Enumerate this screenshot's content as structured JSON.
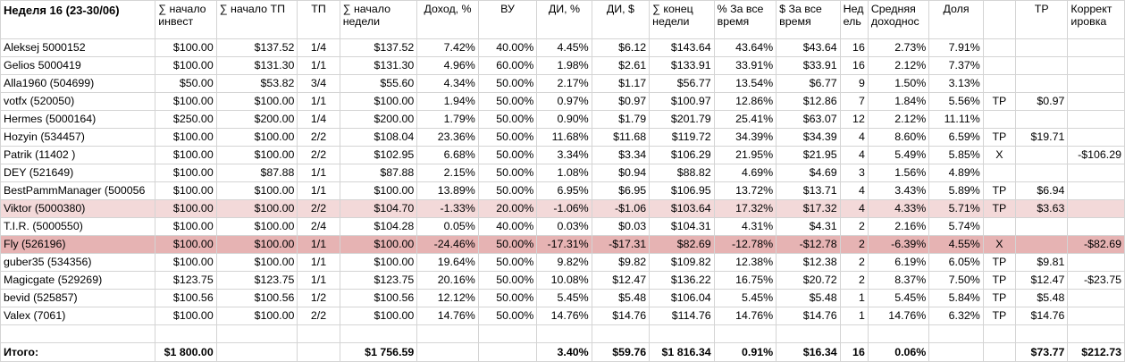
{
  "header": {
    "title": "Неделя 16 (23-30/06)",
    "columns": [
      "∑ начало инвест",
      "∑ начало ТП",
      "ТП",
      "∑ начало недели",
      "Доход, %",
      "ВУ",
      "ДИ, %",
      "ДИ, $",
      "∑ конец недели",
      "% За все время",
      "$ За все время",
      "Неделя",
      "Средняя доходность",
      "Доля",
      "",
      "ТР",
      "Корректировка"
    ],
    "columns_display": [
      "∑ начало\nинвест",
      "∑ начало ТП",
      "ТП",
      "∑ начало\nнедели",
      "Доход, %",
      "ВУ",
      "ДИ, %",
      "ДИ, $",
      "∑ конец\nнедели",
      "% За все\nвремя",
      "$ За все\nвремя",
      "Нед\nель",
      "Средняя\nдоходнос",
      "Доля",
      "",
      "ТР",
      "Коррект\nировка"
    ]
  },
  "rows": [
    {
      "name": "Aleksej 5000152",
      "cells": [
        "$100.00",
        "$137.52",
        "1/4",
        "$137.52",
        "7.42%",
        "40.00%",
        "4.45%",
        "$6.12",
        "$143.64",
        "43.64%",
        "$43.64",
        "16",
        "2.73%",
        "7.91%",
        "",
        "",
        ""
      ],
      "style": ""
    },
    {
      "name": "Gelios 5000419",
      "cells": [
        "$100.00",
        "$131.30",
        "1/1",
        "$131.30",
        "4.96%",
        "60.00%",
        "1.98%",
        "$2.61",
        "$133.91",
        "33.91%",
        "$33.91",
        "16",
        "2.12%",
        "7.37%",
        "",
        "",
        ""
      ],
      "style": ""
    },
    {
      "name": "Alla1960  (504699)",
      "cells": [
        "$50.00",
        "$53.82",
        "3/4",
        "$55.60",
        "4.34%",
        "50.00%",
        "2.17%",
        "$1.17",
        "$56.77",
        "13.54%",
        "$6.77",
        "9",
        "1.50%",
        "3.13%",
        "",
        "",
        ""
      ],
      "style": ""
    },
    {
      "name": "votfx (520050)",
      "cells": [
        "$100.00",
        "$100.00",
        "1/1",
        "$100.00",
        "1.94%",
        "50.00%",
        "0.97%",
        "$0.97",
        "$100.97",
        "12.86%",
        "$12.86",
        "7",
        "1.84%",
        "5.56%",
        "TP",
        "$0.97",
        ""
      ],
      "style": ""
    },
    {
      "name": "Hermes (5000164)",
      "cells": [
        "$250.00",
        "$200.00",
        "1/4",
        "$200.00",
        "1.79%",
        "50.00%",
        "0.90%",
        "$1.79",
        "$201.79",
        "25.41%",
        "$63.07",
        "12",
        "2.12%",
        "11.11%",
        "",
        "",
        ""
      ],
      "style": ""
    },
    {
      "name": "Hozyin (534457)",
      "cells": [
        "$100.00",
        "$100.00",
        "2/2",
        "$108.04",
        "23.36%",
        "50.00%",
        "11.68%",
        "$11.68",
        "$119.72",
        "34.39%",
        "$34.39",
        "4",
        "8.60%",
        "6.59%",
        "TP",
        "$19.71",
        ""
      ],
      "style": ""
    },
    {
      "name": "Patrik (11402 )",
      "cells": [
        "$100.00",
        "$100.00",
        "2/2",
        "$102.95",
        "6.68%",
        "50.00%",
        "3.34%",
        "$3.34",
        "$106.29",
        "21.95%",
        "$21.95",
        "4",
        "5.49%",
        "5.85%",
        "X",
        "",
        "-$106.29"
      ],
      "style": ""
    },
    {
      "name": "DEY (521649)",
      "cells": [
        "$100.00",
        "$87.88",
        "1/1",
        "$87.88",
        "2.15%",
        "50.00%",
        "1.08%",
        "$0.94",
        "$88.82",
        "4.69%",
        "$4.69",
        "3",
        "1.56%",
        "4.89%",
        "",
        "",
        ""
      ],
      "style": ""
    },
    {
      "name": "BestPammManager (500056",
      "cells": [
        "$100.00",
        "$100.00",
        "1/1",
        "$100.00",
        "13.89%",
        "50.00%",
        "6.95%",
        "$6.95",
        "$106.95",
        "13.72%",
        "$13.71",
        "4",
        "3.43%",
        "5.89%",
        "TP",
        "$6.94",
        ""
      ],
      "style": ""
    },
    {
      "name": "Viktor (5000380)",
      "cells": [
        "$100.00",
        "$100.00",
        "2/2",
        "$104.70",
        "-1.33%",
        "20.00%",
        "-1.06%",
        "-$1.06",
        "$103.64",
        "17.32%",
        "$17.32",
        "4",
        "4.33%",
        "5.71%",
        "TP",
        "$3.63",
        ""
      ],
      "style": "pink"
    },
    {
      "name": "T.I.R. (5000550)",
      "cells": [
        "$100.00",
        "$100.00",
        "2/4",
        "$104.28",
        "0.05%",
        "40.00%",
        "0.03%",
        "$0.03",
        "$104.31",
        "4.31%",
        "$4.31",
        "2",
        "2.16%",
        "5.74%",
        "",
        "",
        ""
      ],
      "style": ""
    },
    {
      "name": "Fly (526196)",
      "cells": [
        "$100.00",
        "$100.00",
        "1/1",
        "$100.00",
        "-24.46%",
        "50.00%",
        "-17.31%",
        "-$17.31",
        "$82.69",
        "-12.78%",
        "-$12.78",
        "2",
        "-6.39%",
        "4.55%",
        "X",
        "",
        "-$82.69"
      ],
      "style": "red"
    },
    {
      "name": "guber35 (534356)",
      "cells": [
        "$100.00",
        "$100.00",
        "1/1",
        "$100.00",
        "19.64%",
        "50.00%",
        "9.82%",
        "$9.82",
        "$109.82",
        "12.38%",
        "$12.38",
        "2",
        "6.19%",
        "6.05%",
        "TP",
        "$9.81",
        ""
      ],
      "style": ""
    },
    {
      "name": "Magicgate (529269)",
      "cells": [
        "$123.75",
        "$123.75",
        "1/1",
        "$123.75",
        "20.16%",
        "50.00%",
        "10.08%",
        "$12.47",
        "$136.22",
        "16.75%",
        "$20.72",
        "2",
        "8.37%",
        "7.50%",
        "TP",
        "$12.47",
        "-$23.75"
      ],
      "style": ""
    },
    {
      "name": "bevid (525857)",
      "cells": [
        "$100.56",
        "$100.56",
        "1/2",
        "$100.56",
        "12.12%",
        "50.00%",
        "5.45%",
        "$5.48",
        "$106.04",
        "5.45%",
        "$5.48",
        "1",
        "5.45%",
        "5.84%",
        "TP",
        "$5.48",
        ""
      ],
      "style": ""
    },
    {
      "name": "Valex (7061)",
      "cells": [
        "$100.00",
        "$100.00",
        "2/2",
        "$100.00",
        "14.76%",
        "50.00%",
        "14.76%",
        "$14.76",
        "$114.76",
        "14.76%",
        "$14.76",
        "1",
        "14.76%",
        "6.32%",
        "TP",
        "$14.76",
        ""
      ],
      "style": ""
    }
  ],
  "totals": {
    "label": "Итого:",
    "cells": [
      "$1 800.00",
      "",
      "",
      "$1 756.59",
      "",
      "",
      "3.40%",
      "$59.76",
      "$1 816.34",
      "0.91%",
      "$16.34",
      "16",
      "0.06%",
      "",
      "",
      "$73.77",
      "$212.73"
    ]
  }
}
